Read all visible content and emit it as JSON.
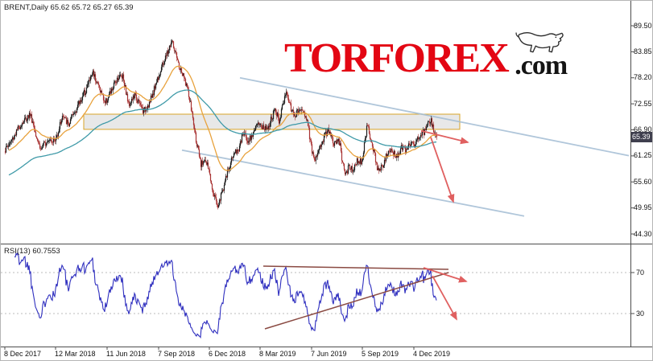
{
  "header": {
    "symbol": "BRENT,Daily",
    "ohlc": "65.62 65.72 65.27 65.39"
  },
  "logo": {
    "tor": "TOR",
    "forex": "FOREX",
    "com": ".com"
  },
  "chart_data": {
    "type": "candlestick",
    "symbol": "BRENT",
    "timeframe": "Daily",
    "ohlc_display": {
      "open": "65.62",
      "high": "65.72",
      "low": "65.27",
      "close": "65.39"
    },
    "days_total": 538,
    "noise_seed": 1337,
    "noise_amp": 0.8,
    "wick_amp": 0.75,
    "colors": {
      "bull": "#1a1a1a",
      "bear": "#a83232"
    },
    "price_axis": {
      "labels": [
        "89.50",
        "83.85",
        "78.20",
        "72.55",
        "66.90",
        "61.25",
        "55.60",
        "49.95",
        "44.30"
      ],
      "top_value": 89.5,
      "step": 5.65,
      "current_price": 65.39,
      "current_label": "65.39"
    },
    "x_axis": {
      "ticks": [
        {
          "label": "8 Dec 2017",
          "day": 1
        },
        {
          "label": "12 Mar 2018",
          "day": 64
        },
        {
          "label": "11 Jun 2018",
          "day": 128
        },
        {
          "label": "7 Sep 2018",
          "day": 192
        },
        {
          "label": "6 Dec 2018",
          "day": 255
        },
        {
          "label": "8 Mar 2019",
          "day": 318
        },
        {
          "label": "7 Jun 2019",
          "day": 382
        },
        {
          "label": "5 Sep 2019",
          "day": 445
        },
        {
          "label": "4 Dec 2019",
          "day": 509
        }
      ]
    },
    "close_anchors": [
      [
        0,
        62.2
      ],
      [
        10,
        65.0
      ],
      [
        20,
        68.0
      ],
      [
        32,
        70.4
      ],
      [
        39,
        66.2
      ],
      [
        45,
        62.6
      ],
      [
        55,
        65.2
      ],
      [
        63,
        64.4
      ],
      [
        72,
        69.9
      ],
      [
        80,
        68.0
      ],
      [
        90,
        71.8
      ],
      [
        100,
        75.2
      ],
      [
        110,
        79.5
      ],
      [
        118,
        76.0
      ],
      [
        125,
        72.8
      ],
      [
        133,
        75.3
      ],
      [
        140,
        78.2
      ],
      [
        147,
        78.8
      ],
      [
        154,
        72.5
      ],
      [
        162,
        74.3
      ],
      [
        173,
        70.9
      ],
      [
        181,
        73.0
      ],
      [
        190,
        78.0
      ],
      [
        200,
        82.5
      ],
      [
        208,
        86.2
      ],
      [
        216,
        81.0
      ],
      [
        226,
        76.8
      ],
      [
        232,
        71.5
      ],
      [
        237,
        65.8
      ],
      [
        244,
        59.0
      ],
      [
        248,
        60.8
      ],
      [
        253,
        58.6
      ],
      [
        259,
        53.8
      ],
      [
        265,
        50.4
      ],
      [
        271,
        53.8
      ],
      [
        277,
        57.5
      ],
      [
        284,
        61.5
      ],
      [
        291,
        62.8
      ],
      [
        297,
        66.3
      ],
      [
        303,
        64.5
      ],
      [
        310,
        66.8
      ],
      [
        317,
        68.3
      ],
      [
        323,
        67.0
      ],
      [
        330,
        68.5
      ],
      [
        336,
        71.2
      ],
      [
        341,
        69.0
      ],
      [
        350,
        75.2
      ],
      [
        356,
        71.5
      ],
      [
        362,
        70.2
      ],
      [
        369,
        71.8
      ],
      [
        376,
        68.9
      ],
      [
        384,
        60.3
      ],
      [
        390,
        62.0
      ],
      [
        397,
        65.5
      ],
      [
        403,
        66.8
      ],
      [
        409,
        63.8
      ],
      [
        416,
        64.3
      ],
      [
        423,
        56.6
      ],
      [
        428,
        59.0
      ],
      [
        433,
        58.5
      ],
      [
        439,
        60.5
      ],
      [
        444,
        60.0
      ],
      [
        451,
        68.5
      ],
      [
        455,
        64.0
      ],
      [
        459,
        62.0
      ],
      [
        464,
        57.9
      ],
      [
        470,
        59.5
      ],
      [
        476,
        61.8
      ],
      [
        482,
        62.0
      ],
      [
        488,
        61.3
      ],
      [
        494,
        63.2
      ],
      [
        499,
        62.5
      ],
      [
        503,
        64.0
      ],
      [
        508,
        63.5
      ],
      [
        512,
        64.8
      ],
      [
        516,
        65.4
      ],
      [
        521,
        66.5
      ],
      [
        526,
        68.0
      ],
      [
        530,
        68.8
      ],
      [
        533,
        66.8
      ],
      [
        537,
        65.39
      ]
    ],
    "moving_averages": [
      {
        "name": "ma-fast",
        "period": 40,
        "color": "#e8a23d"
      },
      {
        "name": "ma-slow",
        "period": 150,
        "init": 56.5,
        "color": "#3f9aa8"
      }
    ],
    "zone": {
      "day_start": 99,
      "day_end": 566,
      "price_top": 70.3,
      "price_bottom": 67.0,
      "fill": "rgba(190,190,190,0.35)",
      "border": "#d9a427"
    },
    "channel_color": "#a3bdd4",
    "channel": [
      {
        "d1": 293,
        "p1": 78.2,
        "d2": 776,
        "p2": 61.3
      },
      {
        "d1": 221,
        "p1": 62.5,
        "d2": 646,
        "p2": 48.2
      }
    ],
    "arrow_color": "#e06060",
    "annotations_price": [
      {
        "d1": 518,
        "p1": 66.7,
        "d2": 576,
        "p2": 64.2
      },
      {
        "d1": 530,
        "p1": 65.3,
        "d2": 558,
        "p2": 51.3
      }
    ],
    "rsi": {
      "label": "RSI(13) 60.7553",
      "period": 13,
      "levels": [
        70,
        30
      ],
      "color": "#2f2fbf",
      "wedge_color": "#8a4a42",
      "wedge": [
        {
          "d1": 322,
          "v1": 76.3,
          "d2": 552,
          "v2": 73.1
        },
        {
          "d1": 324,
          "v1": 15.1,
          "d2": 552,
          "v2": 70.0
        }
      ],
      "annotations": [
        {
          "d1": 521,
          "v1": 74.7,
          "d2": 574,
          "v2": 61.4
        },
        {
          "d1": 532,
          "v1": 66.9,
          "d2": 562,
          "v2": 24.5
        }
      ]
    }
  }
}
